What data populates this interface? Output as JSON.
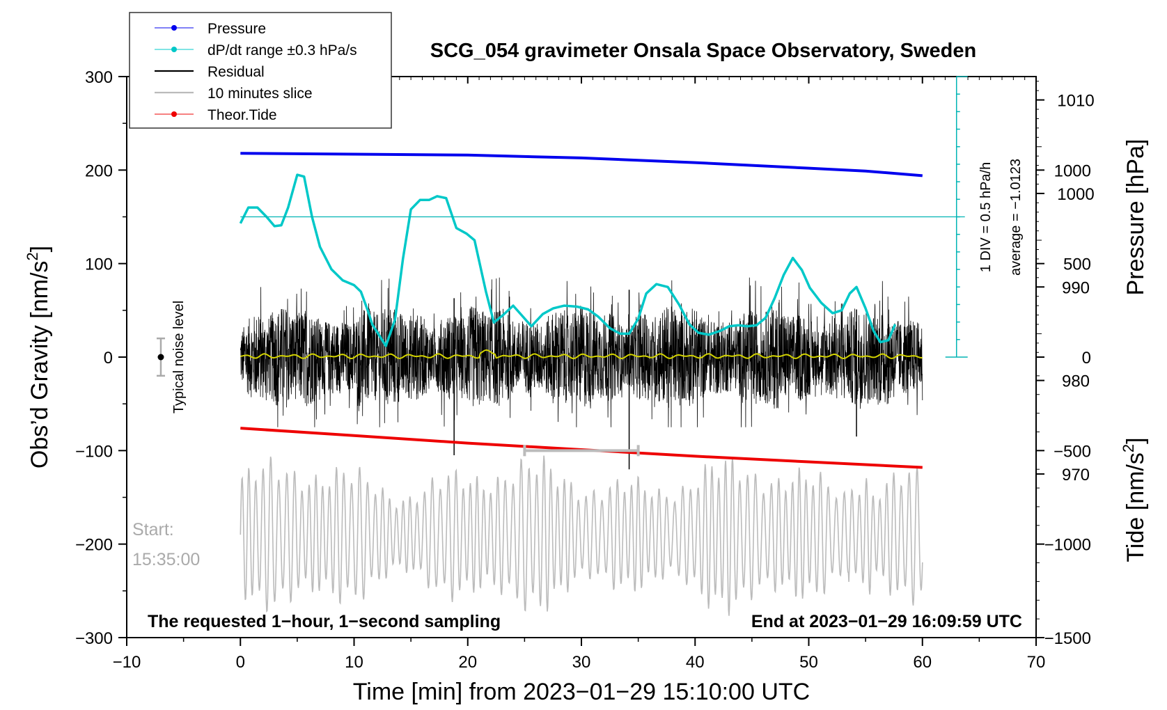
{
  "chart_data": {
    "type": "line",
    "title": "SCG_054 gravimeter Onsala Space Observatory, Sweden",
    "xlabel": "Time [min] from 2023−01−29 15:10:00 UTC",
    "ylabel_left": "Obs’d Gravity [nm/s",
    "ylabel_left_sup": "2",
    "ylabel_left_close": "]",
    "ylabel_right_pressure": "Pressure [hPa]",
    "ylabel_right_tide": "Tide [nm/s",
    "ylabel_right_tide_sup": "2",
    "ylabel_right_tide_close": "]",
    "xlim": [
      -10,
      70
    ],
    "ylim_left": [
      -300,
      300
    ],
    "x_ticks": [
      -10,
      0,
      10,
      20,
      30,
      40,
      50,
      60,
      70
    ],
    "x_tick_labels": [
      "−10",
      "0",
      "10",
      "20",
      "30",
      "40",
      "50",
      "60",
      "70"
    ],
    "y_left_ticks": [
      300,
      200,
      100,
      0,
      -100,
      -200,
      -300
    ],
    "y_left_tick_labels": [
      "300",
      "200",
      "100",
      "0",
      "−100",
      "−200",
      "−300"
    ],
    "pressure_ticks": [
      1010,
      1000,
      990,
      980,
      970
    ],
    "pressure_tick_labels": [
      "1010",
      "1000",
      "990",
      "980",
      "970"
    ],
    "pressure_axis": {
      "left_value_at_300": 1012.5,
      "left_value_per_100": 10
    },
    "tide_ticks": [
      1000,
      500,
      0,
      -500,
      -1000,
      -1500
    ],
    "tide_tick_labels": [
      "1000",
      "500",
      "0",
      "−500",
      "−1000",
      "−1500"
    ],
    "tide_axis": {
      "left_value_at_300": 1500,
      "left_value_per_100": 500,
      "offset_at_minus_300": -1500
    },
    "legend": [
      {
        "label": "Pressure",
        "color": "#0000ee",
        "style": "line-dot"
      },
      {
        "label": "dP/dt range ±0.3 hPa/s",
        "color": "#00c8c8",
        "style": "line-dot"
      },
      {
        "label": "Residual",
        "color": "#000000",
        "style": "line"
      },
      {
        "label": "10 minutes slice",
        "color": "#bbbbbb",
        "style": "line"
      },
      {
        "label": "Theor.Tide",
        "color": "#ee0000",
        "style": "line-dot"
      }
    ],
    "series": [
      {
        "name": "Pressure",
        "color": "#0000ee",
        "unit": "hPa",
        "x": [
          0,
          10,
          20,
          30,
          40,
          50,
          55,
          60
        ],
        "values": [
          1004.3,
          1004.2,
          1004.1,
          1003.8,
          1003.3,
          1002.7,
          1002.4,
          1001.9
        ]
      },
      {
        "name": "dP/dt range ±0.3 hPa/s",
        "color": "#00c8c8",
        "unit": "nm/s2 (scaled, left axis)",
        "x": [
          0,
          0.7,
          1.5,
          2.3,
          3,
          3.6,
          4.2,
          5,
          5.6,
          6.3,
          7,
          8,
          9,
          10,
          10.6,
          11.2,
          11.6,
          12.8,
          13.6,
          14.3,
          15,
          15.8,
          16.6,
          17.3,
          18.1,
          19,
          19.9,
          20.6,
          21.6,
          22.3,
          23.1,
          24,
          24.8,
          25.6,
          26.6,
          27.5,
          28.5,
          29.6,
          30.6,
          31.5,
          32.5,
          33.4,
          34.2,
          35,
          35.7,
          36.6,
          37.6,
          38.6,
          39.5,
          40.3,
          41.2,
          42.2,
          43,
          43.8,
          44.6,
          45.4,
          46.2,
          47,
          47.8,
          48.6,
          49.4,
          50.1,
          51.1,
          52.1,
          52.9,
          53.6,
          54.2,
          55,
          55.7,
          56.3,
          57,
          57.6
        ],
        "values": [
          143,
          160,
          160,
          150,
          140,
          141,
          160,
          195,
          193,
          150,
          118,
          94,
          82,
          77,
          70,
          50,
          35,
          12,
          40,
          105,
          158,
          168,
          168,
          172,
          170,
          138,
          132,
          125,
          70,
          37,
          45,
          55,
          44,
          33,
          46,
          52,
          55,
          54,
          51,
          43,
          31,
          25,
          25,
          41,
          68,
          78,
          75,
          56,
          35,
          26,
          24,
          28,
          33,
          34,
          33,
          34,
          42,
          63,
          88,
          106,
          93,
          74,
          58,
          47,
          50,
          68,
          75,
          52,
          28,
          16,
          18,
          35
        ]
      },
      {
        "name": "Residual",
        "color": "#000000",
        "unit": "nm/s2",
        "x_range": [
          0,
          60
        ],
        "envelope": [
          -75,
          85
        ],
        "spikes_x": [
          18.8,
          34.2,
          54.2
        ],
        "spikes_values": [
          -105,
          -120,
          -85
        ]
      },
      {
        "name": "Residual 10-min average",
        "color": "#d4d400",
        "unit": "nm/s2",
        "x_range": [
          0,
          60
        ],
        "values_approx": [
          0,
          1,
          0,
          -1,
          3,
          0
        ]
      },
      {
        "name": "10 minutes slice",
        "color": "#bbbbbb",
        "unit": "nm/s2 (display)",
        "x_range": [
          0,
          60
        ],
        "center": -190,
        "amplitude": [
          40,
          90
        ]
      },
      {
        "name": "Theor.Tide",
        "color": "#ee0000",
        "unit": "nm/s2",
        "x": [
          0,
          10,
          20,
          30,
          40,
          50,
          60
        ],
        "values": [
          -380,
          -420,
          -460,
          -495,
          -530,
          -560,
          -590
        ]
      }
    ],
    "pressure_scale_bar": {
      "label_div": "1 DIV = 0.5 hPa/h",
      "label_avg": "average = −1.0123",
      "x": 63,
      "y_top": 300,
      "y_bottom": 0,
      "divisions": 16
    },
    "pressure_reference_line": {
      "y": 150
    },
    "noise_level": {
      "label": "Typical noise level",
      "x": -7,
      "center": 0,
      "half_range": 20
    },
    "slice_bar": {
      "x_start": 25,
      "x_end": 35,
      "y": -100
    },
    "start_label_line1": "Start:",
    "start_label_line2": "15:35:00",
    "note_left": "The requested 1−hour, 1−second sampling",
    "note_right": "End at 2023−01−29 16:09:59 UTC"
  }
}
